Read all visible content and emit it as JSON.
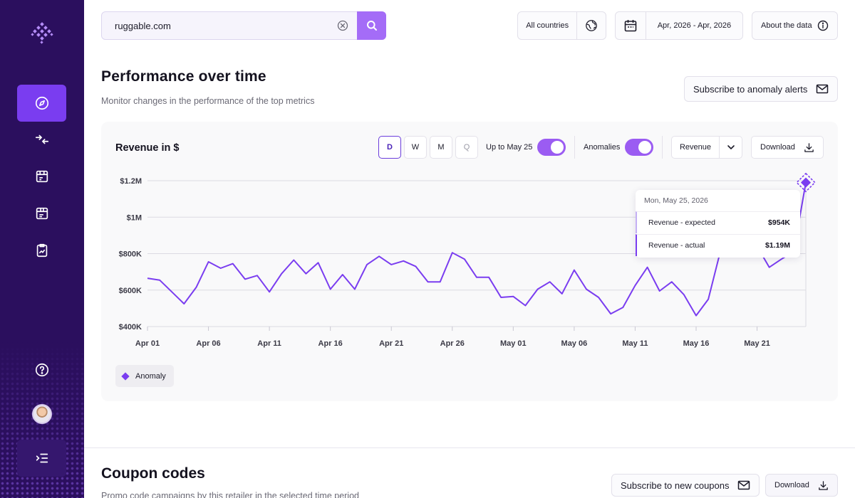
{
  "search": {
    "value": "ruggable.com"
  },
  "topbar": {
    "countries_label": "All countries",
    "date_range_label": "Apr, 2026 - Apr, 2026",
    "about_label": "About the data"
  },
  "performance": {
    "title": "Performance over time",
    "subtitle": "Monitor changes in the performance of the top metrics",
    "subscribe_label": "Subscribe to anomaly alerts",
    "chart_title": "Revenue in $",
    "granularity": [
      "D",
      "W",
      "M",
      "Q"
    ],
    "up_to_label": "Up to May 25",
    "anomalies_label": "Anomalies",
    "metric_select": "Revenue",
    "download_label": "Download",
    "legend_label": "Anomaly"
  },
  "tooltip": {
    "date": "Mon, May 25, 2026",
    "expected_label": "Revenue - expected",
    "expected_value": "$954K",
    "actual_label": "Revenue - actual",
    "actual_value": "$1.19M"
  },
  "coupons": {
    "title": "Coupon codes",
    "subtitle": "Promo code campaigns by this retailer in the selected time period",
    "subscribe_label": "Subscribe to new coupons",
    "download_label": "Download"
  },
  "colors": {
    "accent": "#7a3df0",
    "sidebar": "#2b0f5e",
    "line": "#7a3df0"
  },
  "chart_data": {
    "type": "line",
    "title": "Revenue in $",
    "x_tick_labels": [
      "Apr 01",
      "Apr 06",
      "Apr 11",
      "Apr 16",
      "Apr 21",
      "Apr 26",
      "May 01",
      "May 06",
      "May 11",
      "May 16",
      "May 21"
    ],
    "y_tick_labels": [
      "$1.2M",
      "$1M",
      "$800K",
      "$600K",
      "$400K"
    ],
    "ylim": [
      400000,
      1200000
    ],
    "y_ticks": [
      1200000,
      1000000,
      800000,
      600000,
      400000
    ],
    "x": [
      "Apr 01",
      "Apr 02",
      "Apr 03",
      "Apr 04",
      "Apr 05",
      "Apr 06",
      "Apr 07",
      "Apr 08",
      "Apr 09",
      "Apr 10",
      "Apr 11",
      "Apr 12",
      "Apr 13",
      "Apr 14",
      "Apr 15",
      "Apr 16",
      "Apr 17",
      "Apr 18",
      "Apr 19",
      "Apr 20",
      "Apr 21",
      "Apr 22",
      "Apr 23",
      "Apr 24",
      "Apr 25",
      "Apr 26",
      "Apr 27",
      "Apr 28",
      "Apr 29",
      "Apr 30",
      "May 01",
      "May 02",
      "May 03",
      "May 04",
      "May 05",
      "May 06",
      "May 07",
      "May 08",
      "May 09",
      "May 10",
      "May 11",
      "May 12",
      "May 13",
      "May 14",
      "May 15",
      "May 16",
      "May 17",
      "May 18",
      "May 19",
      "May 20",
      "May 21",
      "May 22",
      "May 23",
      "May 24",
      "May 25"
    ],
    "series": [
      {
        "values": [
          665000,
          655000,
          590000,
          525000,
          615000,
          755000,
          720000,
          745000,
          660000,
          680000,
          590000,
          690000,
          765000,
          690000,
          750000,
          605000,
          685000,
          605000,
          740000,
          785000,
          740000,
          760000,
          730000,
          645000,
          645000,
          805000,
          770000,
          670000,
          670000,
          560000,
          565000,
          515000,
          605000,
          645000,
          580000,
          710000,
          605000,
          560000,
          470000,
          505000,
          625000,
          725000,
          595000,
          645000,
          575000,
          460000,
          550000,
          815000,
          880000,
          910000,
          840000,
          725000,
          770000,
          810000,
          1190000
        ]
      }
    ],
    "anomalies": [
      {
        "x": "May 25",
        "value": 1190000
      }
    ],
    "grid": true,
    "legend": "bottom-left"
  }
}
